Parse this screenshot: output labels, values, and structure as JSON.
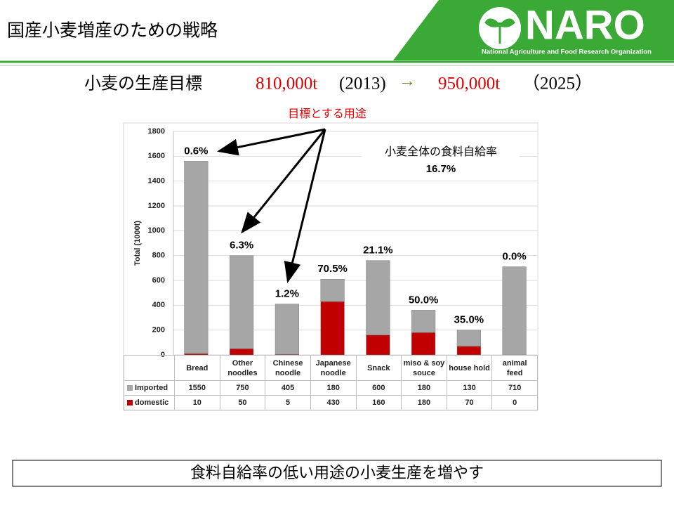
{
  "header": {
    "title": "国産小麦増産のための戦略",
    "logo": "NARO",
    "organization": "National Agriculture and Food Research Organization"
  },
  "goal": {
    "label": "小麦の生産目標",
    "amount_from": "810,000t",
    "year_from": "(2013)",
    "arrow": "→",
    "amount_to": "950,000t",
    "year_to": "（2025）"
  },
  "callout": "目標とする用途",
  "overall": {
    "label": "小麦全体の食料自給率",
    "value": "16.7%"
  },
  "chart_data": {
    "type": "stacked_bar",
    "y_label": "Total (1000t)",
    "categories": [
      "Bread",
      "Other noodles",
      "Chinese noodle",
      "Japanese noodle",
      "Snack",
      "miso & soy souce",
      "house hold",
      "animal feed"
    ],
    "series": [
      {
        "name": "Imported",
        "color": "#a6a6a6",
        "values": [
          1550,
          750,
          405,
          180,
          600,
          180,
          130,
          710
        ]
      },
      {
        "name": "domestic",
        "color": "#c00000",
        "values": [
          10,
          50,
          5,
          430,
          160,
          180,
          70,
          0
        ]
      }
    ],
    "bar_labels": [
      "0.6%",
      "6.3%",
      "1.2%",
      "70.5%",
      "21.1%",
      "50.0%",
      "35.0%",
      "0.0%"
    ],
    "ylim": [
      0,
      1800
    ],
    "yticks": [
      0,
      200,
      400,
      600,
      800,
      1000,
      1200,
      1400,
      1600,
      1800
    ],
    "grid": true
  },
  "footer": "食料自給率の低い用途の小麦生産を増やす"
}
